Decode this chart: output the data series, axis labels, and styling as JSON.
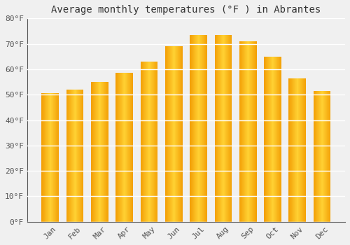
{
  "title": "Average monthly temperatures (°F ) in Abrantes",
  "months": [
    "Jan",
    "Feb",
    "Mar",
    "Apr",
    "May",
    "Jun",
    "Jul",
    "Aug",
    "Sep",
    "Oct",
    "Nov",
    "Dec"
  ],
  "values": [
    50.5,
    52.0,
    55.0,
    58.5,
    63.0,
    69.0,
    73.5,
    73.5,
    71.0,
    65.0,
    56.5,
    51.5
  ],
  "bar_color_center": "#FFD040",
  "bar_color_edge": "#F5A000",
  "ylim": [
    0,
    80
  ],
  "yticks": [
    0,
    10,
    20,
    30,
    40,
    50,
    60,
    70,
    80
  ],
  "ytick_labels": [
    "0°F",
    "10°F",
    "20°F",
    "30°F",
    "40°F",
    "50°F",
    "60°F",
    "70°F",
    "80°F"
  ],
  "background_color": "#f0f0f0",
  "plot_bg_color": "#f0f0f0",
  "grid_color": "#ffffff",
  "title_fontsize": 10,
  "tick_fontsize": 8,
  "font_family": "monospace",
  "bar_width": 0.7,
  "spine_color": "#555555"
}
